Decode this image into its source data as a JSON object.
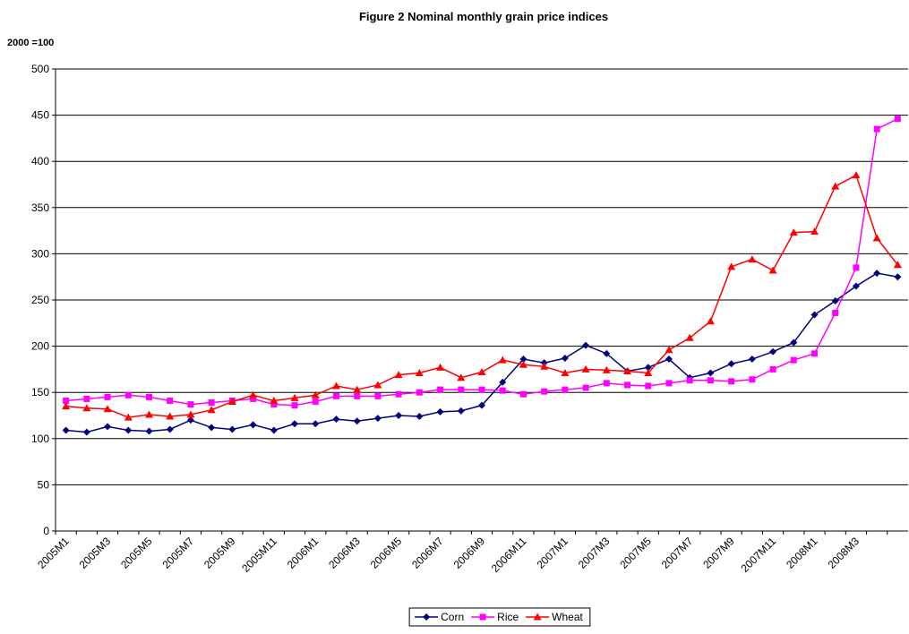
{
  "chart_data": {
    "type": "line",
    "title": "Figure 2 Nominal monthly grain price indices",
    "y_label": "2000 =100",
    "categories": [
      "2005M1",
      null,
      "2005M3",
      null,
      "2005M5",
      null,
      "2005M7",
      null,
      "2005M9",
      null,
      "2005M11",
      null,
      "2006M1",
      null,
      "2006M3",
      null,
      "2006M5",
      null,
      "2006M7",
      null,
      "2006M9",
      null,
      "2006M11",
      null,
      "2007M1",
      null,
      "2007M3",
      null,
      "2007M5",
      null,
      "2007M7",
      null,
      "2007M9",
      null,
      "2007M11",
      null,
      "2008M1",
      null,
      "2008M3",
      null,
      null
    ],
    "series": [
      {
        "name": "Corn",
        "color": "#000080",
        "marker": "diamond",
        "values": [
          109,
          107,
          113,
          109,
          108,
          110,
          120,
          112,
          110,
          115,
          109,
          116,
          116,
          121,
          119,
          122,
          125,
          124,
          129,
          130,
          136,
          161,
          186,
          182,
          187,
          201,
          192,
          173,
          177,
          186,
          166,
          171,
          181,
          186,
          194,
          204,
          234,
          249,
          265,
          279,
          275
        ]
      },
      {
        "name": "Rice",
        "color": "#ff00ff",
        "marker": "square",
        "values": [
          141,
          143,
          145,
          147,
          145,
          141,
          137,
          139,
          141,
          143,
          137,
          136,
          140,
          146,
          146,
          146,
          148,
          150,
          153,
          153,
          153,
          152,
          148,
          151,
          153,
          155,
          160,
          158,
          157,
          160,
          163,
          163,
          162,
          164,
          175,
          185,
          192,
          236,
          285,
          435,
          446
        ]
      },
      {
        "name": "Wheat",
        "color": "#ff0000",
        "marker": "triangle",
        "values": [
          135,
          133,
          132,
          123,
          126,
          124,
          126,
          131,
          140,
          147,
          141,
          144,
          147,
          157,
          153,
          158,
          169,
          171,
          177,
          166,
          172,
          185,
          180,
          178,
          171,
          175,
          174,
          173,
          171,
          196,
          209,
          227,
          286,
          294,
          282,
          323,
          324,
          373,
          385,
          317,
          288
        ]
      }
    ],
    "ylim": [
      0,
      500
    ],
    "yticks": [
      0,
      50,
      100,
      150,
      200,
      250,
      300,
      350,
      400,
      450,
      500
    ],
    "grid": true,
    "legend": "bottom"
  }
}
